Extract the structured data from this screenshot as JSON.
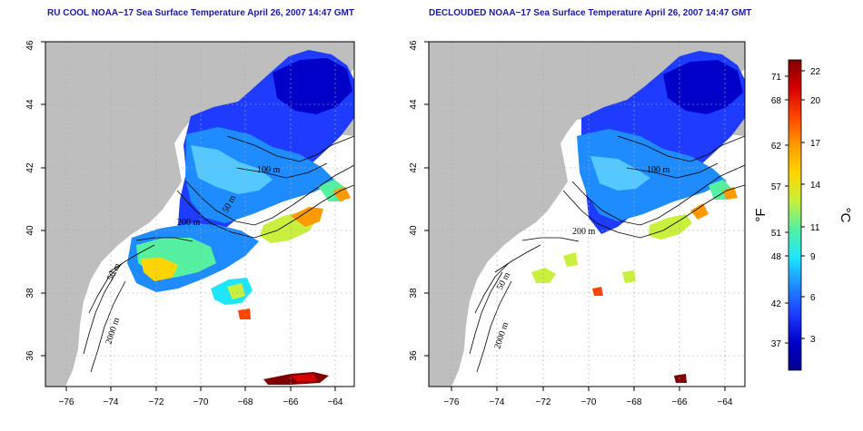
{
  "left_map": {
    "title": "RU COOL NOAA−17 Sea Surface Temperature April 26, 2007 14:47 GMT"
  },
  "right_map": {
    "title": "DECLOUDED NOAA−17 Sea Surface Temperature April 26, 2007 14:47 GMT"
  },
  "x_ticks": [
    "−76",
    "−74",
    "−72",
    "−70",
    "−68",
    "−66",
    "−64"
  ],
  "y_ticks": [
    "36",
    "38",
    "40",
    "42",
    "44",
    "46"
  ],
  "contour_labels": {
    "c200": "200 m",
    "c50": "50 m",
    "c2000": "2000 m",
    "c100": "100 m",
    "c50b": "50 m"
  },
  "colorbar": {
    "fahrenheit_ticks": [
      "71",
      "68",
      "62",
      "57",
      "51",
      "48",
      "42",
      "37"
    ],
    "celsius_ticks": [
      "22",
      "20",
      "17",
      "14",
      "11",
      "9",
      "6",
      "3"
    ],
    "fahrenheit_unit": "°F",
    "celsius_unit": "°C",
    "colors": [
      "#7f0000",
      "#d40000",
      "#ff4400",
      "#ff9900",
      "#ffd500",
      "#c8f03c",
      "#55f0a0",
      "#1ee6ff",
      "#1e8cff",
      "#1e3cff",
      "#0000c8",
      "#000090"
    ]
  }
}
